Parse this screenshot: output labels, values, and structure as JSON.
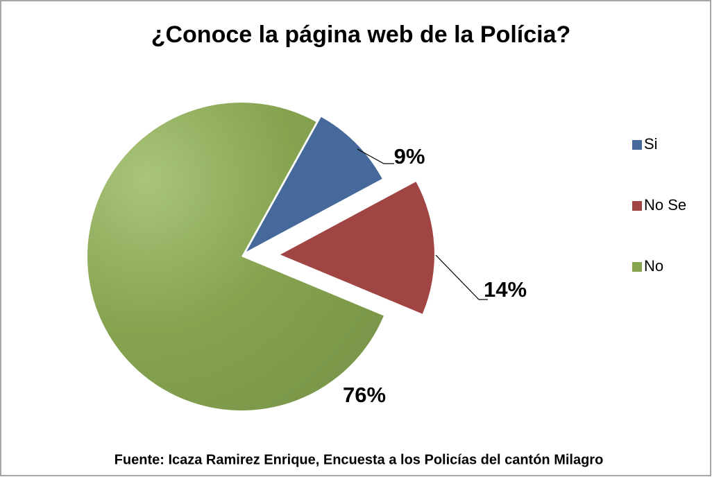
{
  "chart_data": {
    "type": "pie",
    "title": "¿Conoce la página web de la Polícia?",
    "categories": [
      "Si",
      "No Se",
      "No"
    ],
    "values": [
      9,
      14,
      76
    ],
    "value_labels": [
      "9%",
      "14%",
      "76%"
    ],
    "colors": [
      "#46699c",
      "#a04544",
      "#86a350"
    ],
    "legend": "right",
    "source": "Fuente: Icaza Ramirez Enrique, Encuesta a los Policías  del cantón Milagro"
  }
}
